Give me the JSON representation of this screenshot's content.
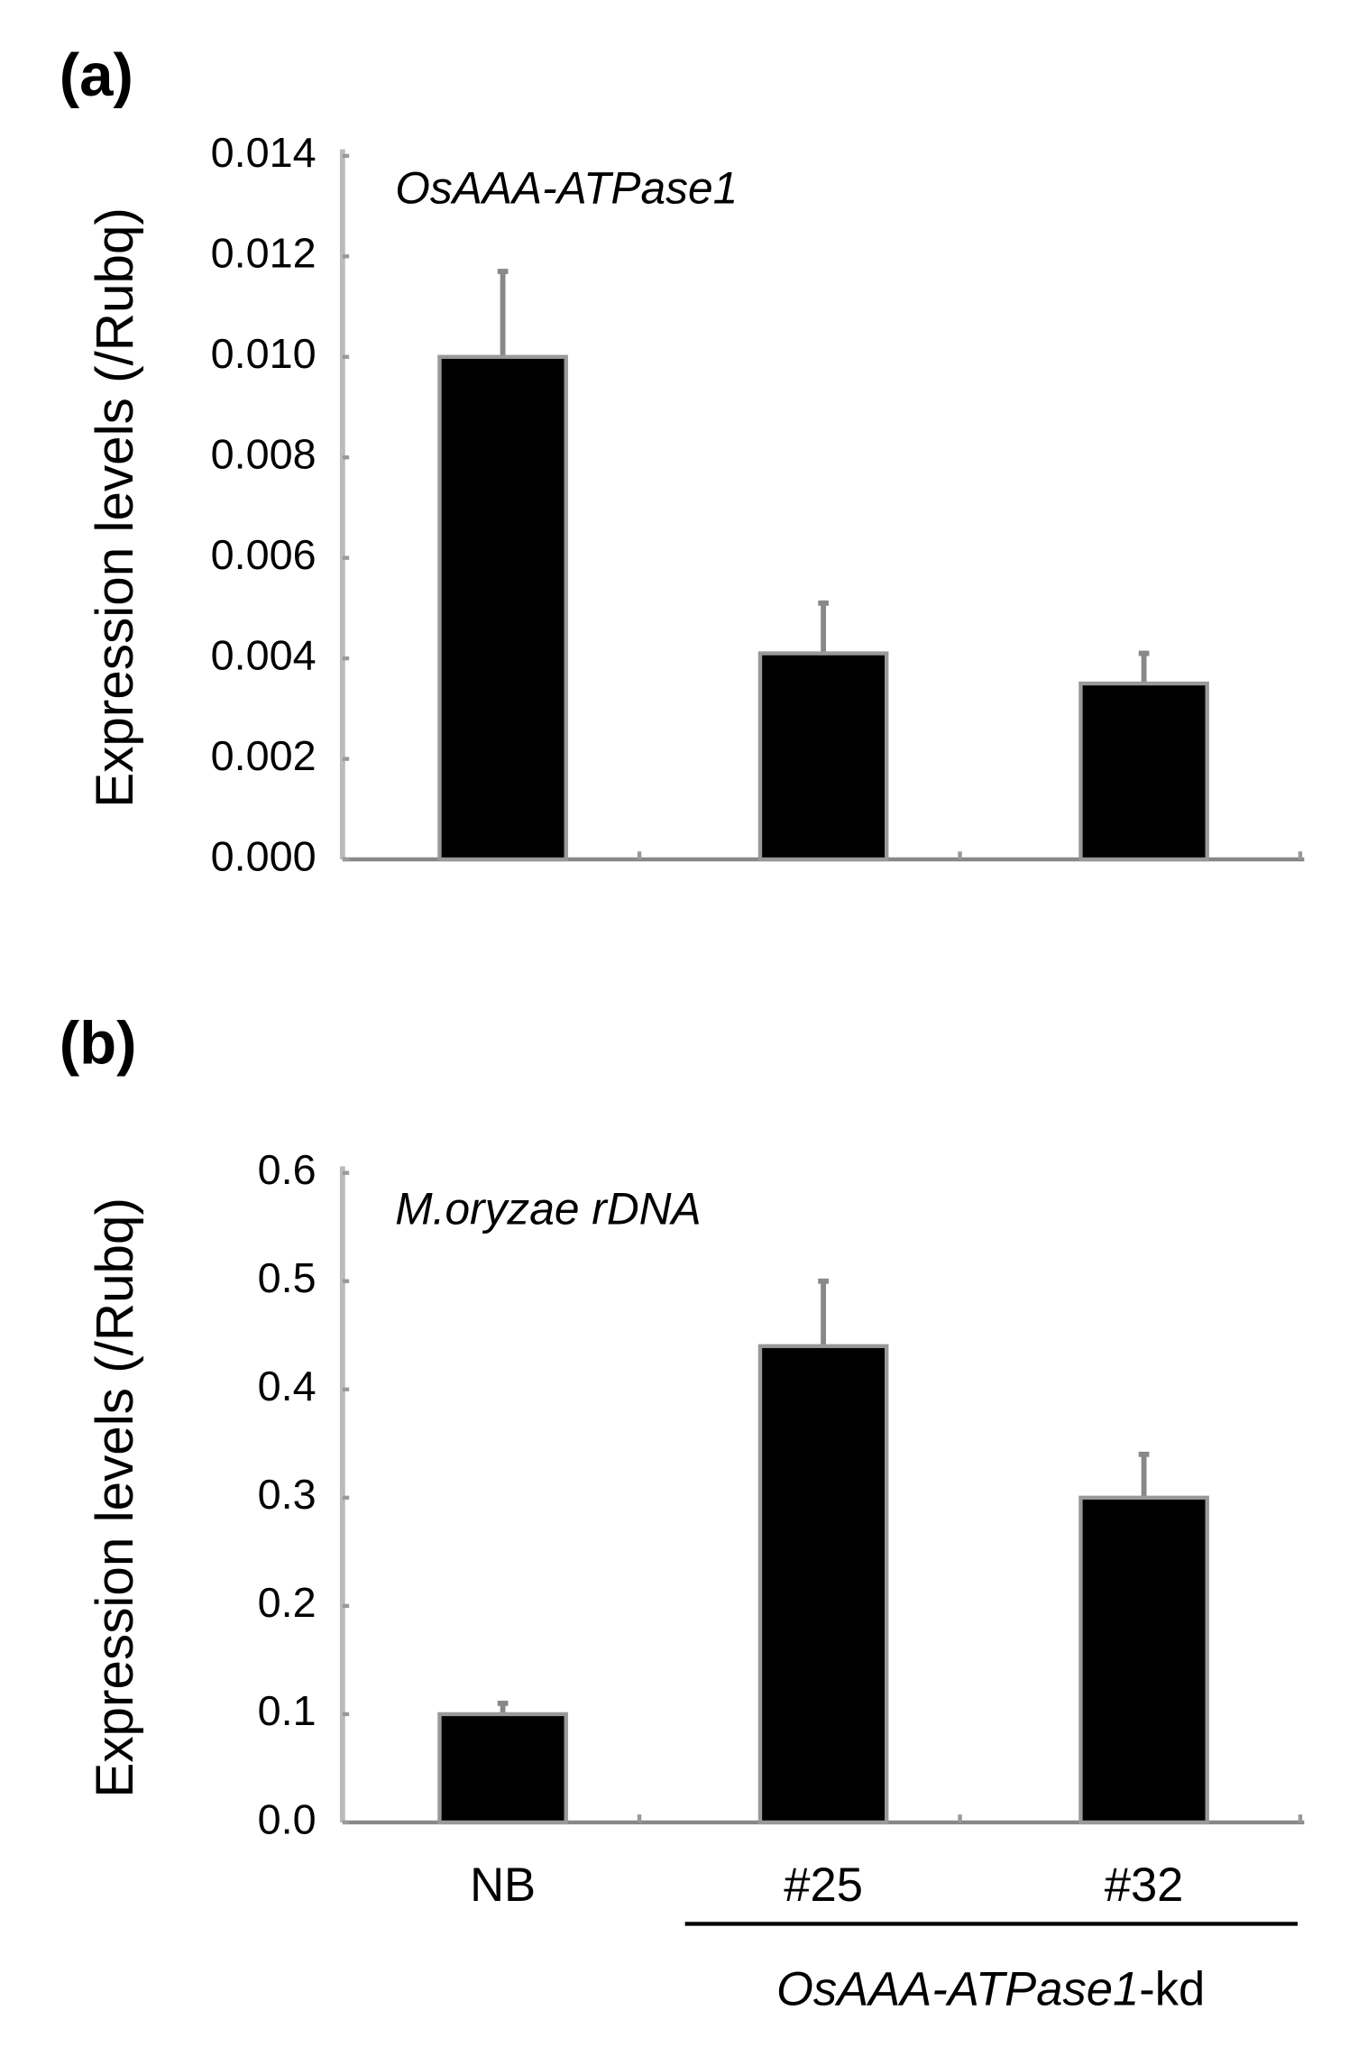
{
  "chart_data": [
    {
      "type": "bar",
      "panel_label": "(a)",
      "title": "OsAAA-ATPase1",
      "y_label": "Expression levels (/Rubq)",
      "categories": [
        null,
        null,
        null
      ],
      "values": [
        0.01,
        0.0041,
        0.0035
      ],
      "errors": [
        0.0017,
        0.001,
        0.0006
      ],
      "color": "#000000",
      "ylim": [
        0,
        0.014
      ],
      "yticks": [
        {
          "value": 0,
          "label": "0.000"
        },
        {
          "value": 0.002,
          "label": "0.002"
        },
        {
          "value": 0.004,
          "label": "0.004"
        },
        {
          "value": 0.006,
          "label": "0.006"
        },
        {
          "value": 0.008,
          "label": "0.008"
        },
        {
          "value": 0.01,
          "label": "0.010"
        },
        {
          "value": 0.012,
          "label": "0.012"
        },
        {
          "value": 0.014,
          "label": "0.014"
        }
      ],
      "grid": false
    },
    {
      "type": "bar",
      "panel_label": "(b)",
      "title": "M.oryzae rDNA",
      "y_label": "Expression levels (/Rubq)",
      "categories": [
        "NB",
        "#25",
        "#32"
      ],
      "values": [
        0.1,
        0.44,
        0.3
      ],
      "errors": [
        0.01,
        0.06,
        0.04
      ],
      "color": "#000000",
      "ylim": [
        0,
        0.6
      ],
      "yticks": [
        {
          "value": 0,
          "label": "0.0"
        },
        0.1,
        0.2,
        0.3,
        0.4,
        0.5,
        0.6
      ],
      "grid": false,
      "group_label_parts": [
        "OsAAA-ATPase1",
        "-kd"
      ]
    }
  ]
}
